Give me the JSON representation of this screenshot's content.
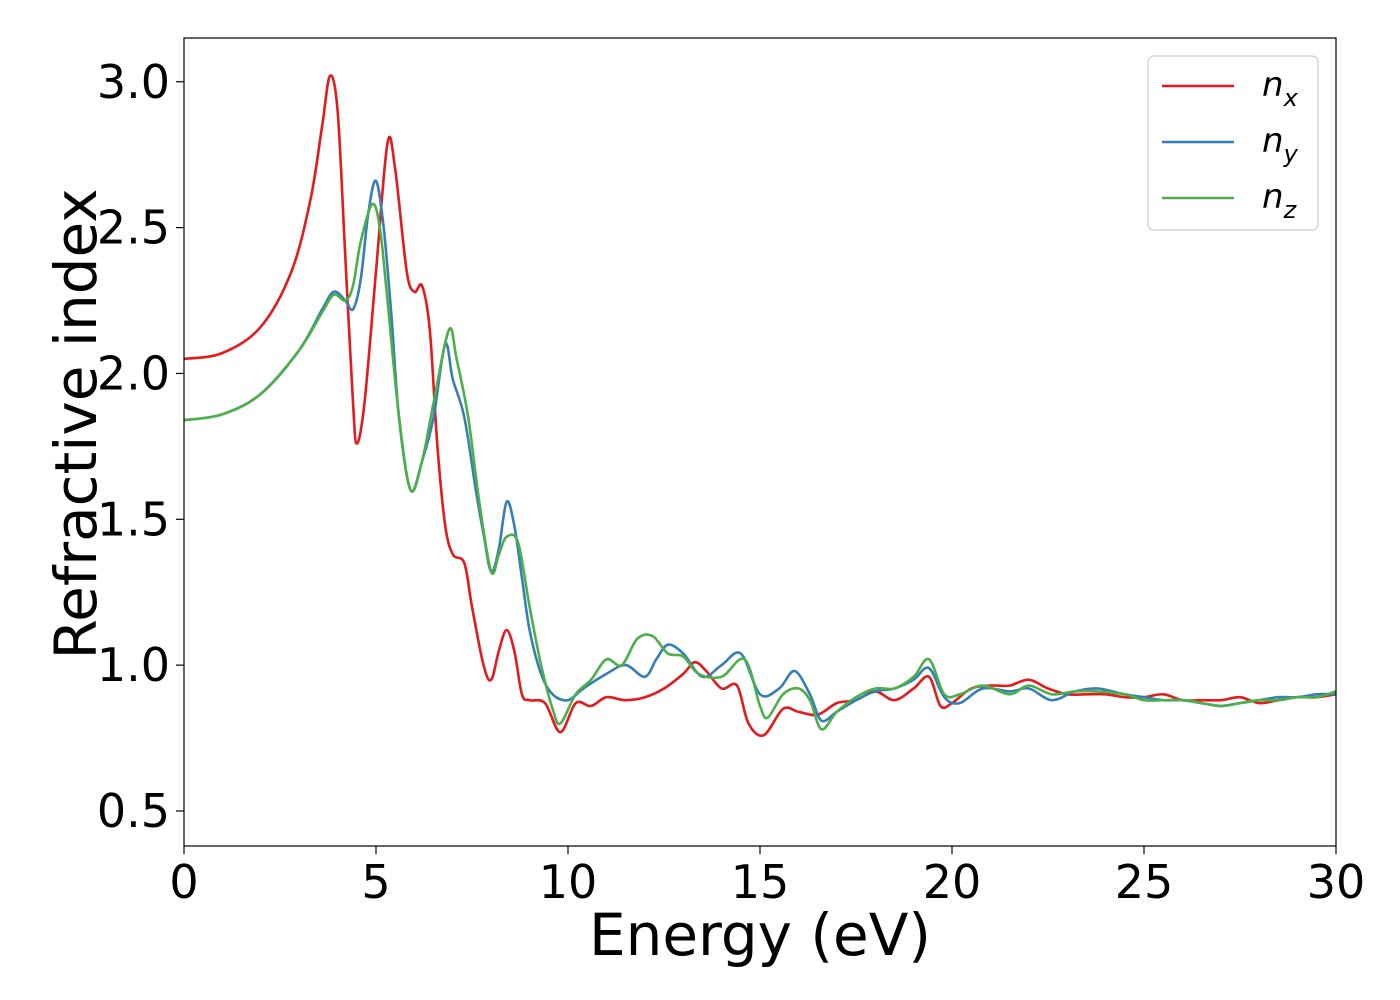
{
  "chart_data": {
    "type": "line",
    "title": "",
    "xlabel": "Energy (eV)",
    "ylabel": "Refractive index",
    "xlim": [
      0,
      30
    ],
    "ylim": [
      0.38,
      3.15
    ],
    "xticks": [
      "0",
      "5",
      "10",
      "15",
      "20",
      "25",
      "30"
    ],
    "xtick_values": [
      0,
      5,
      10,
      15,
      20,
      25,
      30
    ],
    "yticks": [
      "0.5",
      "1.0",
      "1.5",
      "2.0",
      "2.5",
      "3.0"
    ],
    "ytick_values": [
      0.5,
      1.0,
      1.5,
      2.0,
      2.5,
      3.0
    ],
    "grid": false,
    "legend": {
      "position": "top-right",
      "entries": [
        {
          "base": "n",
          "sub": "x",
          "color": "#e41a1c"
        },
        {
          "base": "n",
          "sub": "y",
          "color": "#377eb8"
        },
        {
          "base": "n",
          "sub": "z",
          "color": "#4daf4a"
        }
      ]
    },
    "series": [
      {
        "name": "n_x",
        "color": "#e41a1c",
        "points": [
          [
            0,
            2.05
          ],
          [
            1,
            2.07
          ],
          [
            2,
            2.16
          ],
          [
            2.8,
            2.35
          ],
          [
            3.3,
            2.6
          ],
          [
            3.6,
            2.85
          ],
          [
            3.8,
            3.02
          ],
          [
            4.0,
            2.9
          ],
          [
            4.2,
            2.4
          ],
          [
            4.4,
            1.9
          ],
          [
            4.5,
            1.76
          ],
          [
            4.7,
            1.9
          ],
          [
            5.0,
            2.35
          ],
          [
            5.3,
            2.79
          ],
          [
            5.5,
            2.7
          ],
          [
            5.8,
            2.35
          ],
          [
            6.0,
            2.28
          ],
          [
            6.2,
            2.3
          ],
          [
            6.4,
            2.15
          ],
          [
            6.6,
            1.75
          ],
          [
            6.8,
            1.48
          ],
          [
            7.0,
            1.38
          ],
          [
            7.3,
            1.35
          ],
          [
            7.5,
            1.2
          ],
          [
            7.8,
            1.0
          ],
          [
            8.0,
            0.95
          ],
          [
            8.2,
            1.05
          ],
          [
            8.4,
            1.12
          ],
          [
            8.6,
            1.05
          ],
          [
            8.8,
            0.9
          ],
          [
            9.0,
            0.88
          ],
          [
            9.4,
            0.87
          ],
          [
            9.8,
            0.77
          ],
          [
            10.2,
            0.87
          ],
          [
            10.6,
            0.86
          ],
          [
            11.0,
            0.89
          ],
          [
            11.5,
            0.88
          ],
          [
            12.0,
            0.89
          ],
          [
            12.5,
            0.92
          ],
          [
            13.0,
            0.97
          ],
          [
            13.3,
            1.01
          ],
          [
            13.6,
            0.98
          ],
          [
            14.0,
            0.92
          ],
          [
            14.4,
            0.93
          ],
          [
            14.7,
            0.8
          ],
          [
            15.1,
            0.76
          ],
          [
            15.6,
            0.85
          ],
          [
            16.0,
            0.84
          ],
          [
            16.5,
            0.83
          ],
          [
            17.0,
            0.87
          ],
          [
            17.5,
            0.88
          ],
          [
            18.0,
            0.91
          ],
          [
            18.5,
            0.88
          ],
          [
            19.0,
            0.92
          ],
          [
            19.4,
            0.96
          ],
          [
            19.7,
            0.86
          ],
          [
            20.0,
            0.87
          ],
          [
            20.5,
            0.92
          ],
          [
            21.0,
            0.93
          ],
          [
            21.5,
            0.93
          ],
          [
            22.0,
            0.95
          ],
          [
            22.5,
            0.92
          ],
          [
            23.0,
            0.9
          ],
          [
            23.5,
            0.9
          ],
          [
            24.0,
            0.9
          ],
          [
            24.5,
            0.89
          ],
          [
            25.0,
            0.89
          ],
          [
            25.5,
            0.9
          ],
          [
            26.0,
            0.88
          ],
          [
            26.5,
            0.88
          ],
          [
            27.0,
            0.88
          ],
          [
            27.5,
            0.89
          ],
          [
            28.0,
            0.87
          ],
          [
            28.5,
            0.88
          ],
          [
            29.0,
            0.89
          ],
          [
            29.5,
            0.89
          ],
          [
            30.0,
            0.9
          ]
        ]
      },
      {
        "name": "n_y",
        "color": "#377eb8",
        "points": [
          [
            0,
            1.84
          ],
          [
            1,
            1.86
          ],
          [
            2,
            1.93
          ],
          [
            3,
            2.08
          ],
          [
            3.6,
            2.22
          ],
          [
            3.9,
            2.28
          ],
          [
            4.2,
            2.25
          ],
          [
            4.4,
            2.22
          ],
          [
            4.6,
            2.32
          ],
          [
            4.8,
            2.55
          ],
          [
            5.0,
            2.66
          ],
          [
            5.2,
            2.5
          ],
          [
            5.4,
            2.2
          ],
          [
            5.6,
            1.85
          ],
          [
            5.9,
            1.6
          ],
          [
            6.2,
            1.7
          ],
          [
            6.5,
            1.85
          ],
          [
            6.8,
            2.1
          ],
          [
            7.0,
            1.98
          ],
          [
            7.3,
            1.85
          ],
          [
            7.6,
            1.6
          ],
          [
            7.8,
            1.45
          ],
          [
            8.0,
            1.32
          ],
          [
            8.2,
            1.4
          ],
          [
            8.4,
            1.56
          ],
          [
            8.6,
            1.48
          ],
          [
            8.8,
            1.3
          ],
          [
            9.0,
            1.12
          ],
          [
            9.3,
            0.97
          ],
          [
            9.6,
            0.9
          ],
          [
            10.0,
            0.88
          ],
          [
            10.4,
            0.92
          ],
          [
            11.0,
            0.97
          ],
          [
            11.5,
            1.0
          ],
          [
            12.0,
            0.96
          ],
          [
            12.3,
            1.02
          ],
          [
            12.6,
            1.07
          ],
          [
            13.0,
            1.04
          ],
          [
            13.5,
            0.96
          ],
          [
            14.0,
            1.0
          ],
          [
            14.5,
            1.04
          ],
          [
            15.0,
            0.9
          ],
          [
            15.5,
            0.92
          ],
          [
            15.9,
            0.98
          ],
          [
            16.3,
            0.9
          ],
          [
            16.6,
            0.81
          ],
          [
            17.0,
            0.84
          ],
          [
            17.5,
            0.88
          ],
          [
            18.0,
            0.91
          ],
          [
            18.5,
            0.92
          ],
          [
            19.0,
            0.95
          ],
          [
            19.4,
            0.99
          ],
          [
            19.8,
            0.89
          ],
          [
            20.2,
            0.87
          ],
          [
            20.8,
            0.92
          ],
          [
            21.5,
            0.91
          ],
          [
            22.0,
            0.92
          ],
          [
            22.6,
            0.88
          ],
          [
            23.2,
            0.91
          ],
          [
            23.8,
            0.92
          ],
          [
            24.5,
            0.9
          ],
          [
            25.0,
            0.89
          ],
          [
            25.5,
            0.88
          ],
          [
            26.0,
            0.88
          ],
          [
            26.5,
            0.87
          ],
          [
            27.0,
            0.86
          ],
          [
            27.5,
            0.87
          ],
          [
            28.0,
            0.88
          ],
          [
            28.5,
            0.89
          ],
          [
            29.0,
            0.89
          ],
          [
            29.5,
            0.9
          ],
          [
            30.0,
            0.9
          ]
        ]
      },
      {
        "name": "n_z",
        "color": "#4daf4a",
        "points": [
          [
            0,
            1.84
          ],
          [
            1,
            1.86
          ],
          [
            2,
            1.93
          ],
          [
            3,
            2.08
          ],
          [
            3.6,
            2.21
          ],
          [
            3.9,
            2.27
          ],
          [
            4.2,
            2.25
          ],
          [
            4.4,
            2.3
          ],
          [
            4.6,
            2.45
          ],
          [
            4.9,
            2.58
          ],
          [
            5.1,
            2.5
          ],
          [
            5.3,
            2.25
          ],
          [
            5.6,
            1.85
          ],
          [
            5.9,
            1.6
          ],
          [
            6.2,
            1.7
          ],
          [
            6.5,
            1.9
          ],
          [
            6.9,
            2.15
          ],
          [
            7.1,
            2.05
          ],
          [
            7.4,
            1.85
          ],
          [
            7.7,
            1.55
          ],
          [
            8.0,
            1.32
          ],
          [
            8.2,
            1.38
          ],
          [
            8.4,
            1.44
          ],
          [
            8.7,
            1.42
          ],
          [
            9.0,
            1.2
          ],
          [
            9.3,
            1.0
          ],
          [
            9.6,
            0.85
          ],
          [
            9.8,
            0.8
          ],
          [
            10.2,
            0.9
          ],
          [
            10.6,
            0.95
          ],
          [
            11.0,
            1.02
          ],
          [
            11.4,
            1.0
          ],
          [
            11.8,
            1.09
          ],
          [
            12.2,
            1.1
          ],
          [
            12.6,
            1.04
          ],
          [
            13.0,
            1.03
          ],
          [
            13.4,
            0.97
          ],
          [
            14.0,
            0.96
          ],
          [
            14.6,
            1.02
          ],
          [
            15.0,
            0.86
          ],
          [
            15.2,
            0.82
          ],
          [
            15.6,
            0.9
          ],
          [
            16.0,
            0.92
          ],
          [
            16.3,
            0.88
          ],
          [
            16.6,
            0.78
          ],
          [
            17.0,
            0.84
          ],
          [
            17.5,
            0.89
          ],
          [
            18.0,
            0.92
          ],
          [
            18.5,
            0.92
          ],
          [
            19.0,
            0.96
          ],
          [
            19.4,
            1.02
          ],
          [
            19.8,
            0.9
          ],
          [
            20.2,
            0.9
          ],
          [
            20.8,
            0.93
          ],
          [
            21.5,
            0.9
          ],
          [
            22.0,
            0.93
          ],
          [
            22.6,
            0.9
          ],
          [
            23.2,
            0.91
          ],
          [
            23.8,
            0.91
          ],
          [
            24.5,
            0.9
          ],
          [
            25.0,
            0.88
          ],
          [
            25.5,
            0.88
          ],
          [
            26.0,
            0.88
          ],
          [
            26.5,
            0.87
          ],
          [
            27.0,
            0.86
          ],
          [
            27.5,
            0.87
          ],
          [
            28.0,
            0.88
          ],
          [
            28.5,
            0.88
          ],
          [
            29.0,
            0.89
          ],
          [
            29.5,
            0.89
          ],
          [
            30.0,
            0.91
          ]
        ]
      }
    ]
  }
}
